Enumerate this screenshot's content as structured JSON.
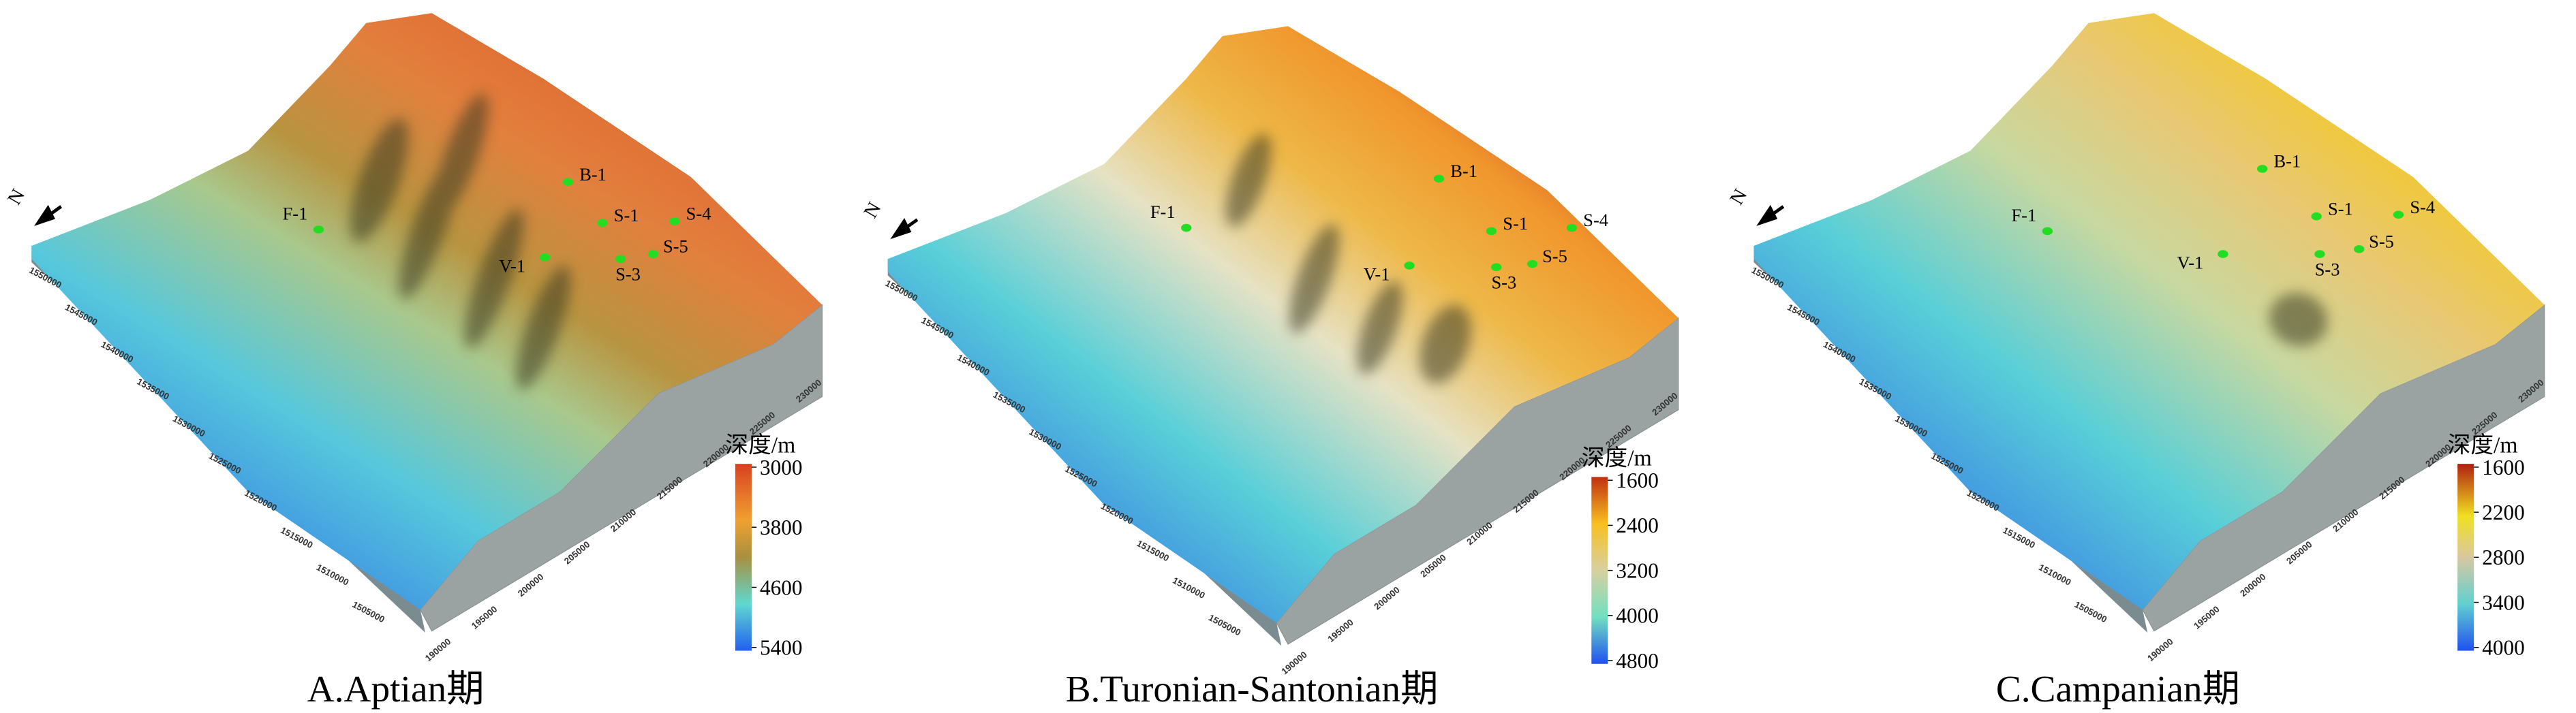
{
  "panels": [
    {
      "title": "A.Aptian期",
      "north": "N",
      "colorbar": {
        "label": "深度/m",
        "ticks": [
          3000,
          3800,
          4600,
          5400
        ]
      },
      "wells": [
        "F-1",
        "B-1",
        "S-1",
        "S-4",
        "V-1",
        "S-3",
        "S-5"
      ],
      "y_ticks": [
        1505000,
        1510000,
        1515000,
        1520000,
        1525000,
        1530000,
        1535000,
        1540000,
        1545000,
        1550000
      ],
      "x_ticks": [
        190000,
        195000,
        200000,
        205000,
        210000,
        215000,
        220000,
        225000,
        230000
      ]
    },
    {
      "title": "B.Turonian-Santonian期",
      "north": "N",
      "colorbar": {
        "label": "深度/m",
        "ticks": [
          1600,
          2400,
          3200,
          4000,
          4800
        ]
      },
      "wells": [
        "F-1",
        "B-1",
        "S-1",
        "S-4",
        "V-1",
        "S-3",
        "S-5"
      ],
      "y_ticks": [
        1505000,
        1510000,
        1515000,
        1520000,
        1525000,
        1530000,
        1535000,
        1540000,
        1545000,
        1550000
      ],
      "x_ticks": [
        190000,
        195000,
        200000,
        205000,
        210000,
        215000,
        220000,
        225000,
        230000
      ]
    },
    {
      "title": "C.Campanian期",
      "north": "N",
      "colorbar": {
        "label": "深度/m",
        "ticks": [
          1600,
          2200,
          2800,
          3400,
          4000
        ]
      },
      "wells": [
        "F-1",
        "B-1",
        "S-1",
        "S-4",
        "V-1",
        "S-3",
        "S-5"
      ],
      "y_ticks": [
        1505000,
        1510000,
        1515000,
        1520000,
        1525000,
        1530000,
        1535000,
        1540000,
        1545000,
        1550000
      ],
      "x_ticks": [
        190000,
        195000,
        200000,
        205000,
        210000,
        215000,
        220000,
        225000,
        230000
      ]
    }
  ]
}
